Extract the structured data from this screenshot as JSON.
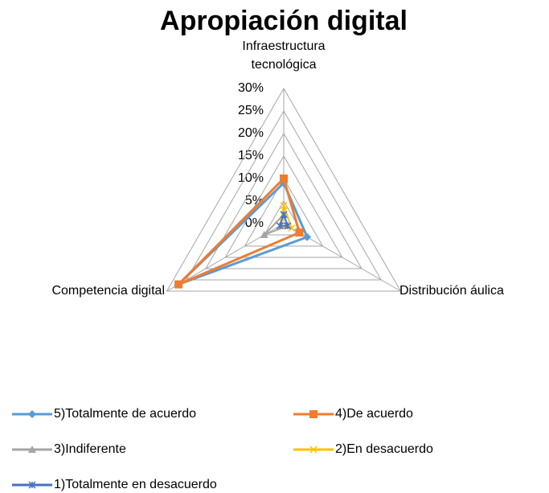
{
  "chart_data": {
    "type": "radar",
    "title": "Apropiación  digital",
    "categories": [
      "Infraestructura tecnológica",
      "Distribución áulica",
      "Competencia digital"
    ],
    "ylim": [
      0,
      30
    ],
    "yticks": [
      {
        "value": 0,
        "label": "0%"
      },
      {
        "value": 5,
        "label": "5%"
      },
      {
        "value": 10,
        "label": "10%"
      },
      {
        "value": 15,
        "label": "15%"
      },
      {
        "value": 20,
        "label": "20%"
      },
      {
        "value": 25,
        "label": "25%"
      },
      {
        "value": 30,
        "label": "30%"
      }
    ],
    "grid": true,
    "series": [
      {
        "name": "5)Totalmente de acuerdo",
        "color": "#5b9bd5",
        "marker": "diamond",
        "values": [
          9,
          6,
          27
        ]
      },
      {
        "name": "4)De acuerdo",
        "color": "#ed7d31",
        "marker": "square",
        "values": [
          10,
          4,
          27
        ]
      },
      {
        "name": "3)Indiferente",
        "color": "#a5a5a5",
        "marker": "triangle",
        "values": [
          2,
          1,
          5
        ]
      },
      {
        "name": "2)En desacuerdo",
        "color": "#ffc000",
        "marker": "x",
        "values": [
          4,
          2,
          1
        ]
      },
      {
        "name": "1)Totalmente en desacuerdo",
        "color": "#4472c4",
        "marker": "star",
        "values": [
          2,
          1,
          1
        ]
      }
    ]
  }
}
